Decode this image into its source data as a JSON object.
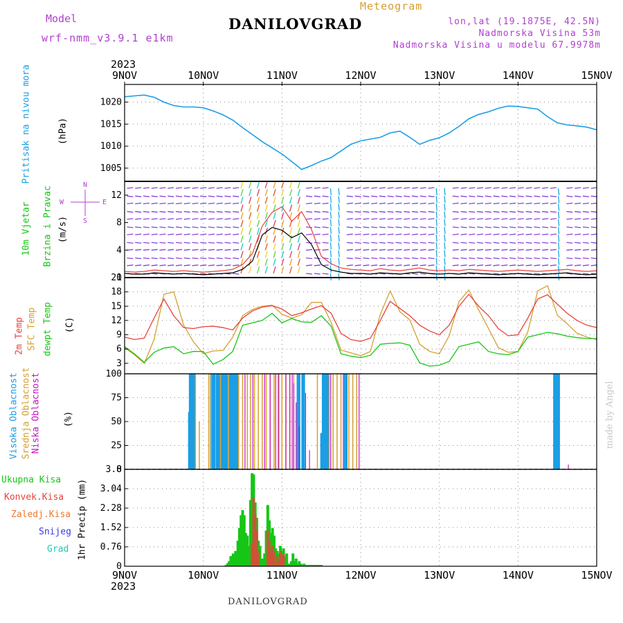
{
  "header": {
    "model_label": "Model",
    "model_name": "wrf-nmm_v3.9.1 e1km",
    "meteogram": "Meteogram",
    "station": "DANILOVGRAD",
    "lonlat": "lon,lat (19.1875E, 42.5N)",
    "elevation": "Nadmorska Visina 53m",
    "model_elevation": "Nadmorska Visina u modelu 67.9978m",
    "year_top": "2023",
    "year_bottom": "2023",
    "footer_station": "DANILOVGRAD",
    "watermark": "made by Angel"
  },
  "colors": {
    "pressure": "#1a9ee6",
    "temp2m": "#e8413c",
    "sfc": "#d4a030",
    "dewpt": "#16c616",
    "high_cloud": "#1a9ee6",
    "mid_cloud": "#d4a030",
    "low_cloud": "#c414c4",
    "total_precip": "#16c616",
    "conv_precip": "#e8413c",
    "grid_precip": "#e87a30",
    "snow": "#3a3ae8",
    "hail": "#20c8b0",
    "wind_mean": "#000000",
    "gust": "#e8413c",
    "purple_text": "#b040d0"
  },
  "chart_data": [
    {
      "type": "line",
      "panel": "pressure",
      "ylabel_left": "Pritisak na nivou mora",
      "ylabel_unit": "(hPa)",
      "ylim": [
        1002,
        1024
      ],
      "yticks": [
        1005,
        1010,
        1015,
        1020
      ],
      "xticks": [
        "9NOV",
        "10NOV",
        "11NOV",
        "12NOV",
        "13NOV",
        "14NOV",
        "15NOV"
      ],
      "x_days": [
        0,
        0.125,
        0.25,
        0.375,
        0.5,
        0.625,
        0.75,
        0.875,
        1,
        1.125,
        1.25,
        1.375,
        1.5,
        1.625,
        1.75,
        1.875,
        2,
        2.125,
        2.25,
        2.375,
        2.5,
        2.625,
        2.75,
        2.875,
        3,
        3.125,
        3.25,
        3.375,
        3.5,
        3.625,
        3.75,
        3.875,
        4,
        4.125,
        4.25,
        4.375,
        4.5,
        4.625,
        4.75,
        4.875,
        5,
        5.125,
        5.25,
        5.375,
        5.5,
        5.625,
        5.75,
        5.875,
        6
      ],
      "series": [
        {
          "values": [
            1021.2,
            1021.4,
            1021.6,
            1021.1,
            1020.0,
            1019.2,
            1018.9,
            1018.9,
            1018.7,
            1018.0,
            1017.1,
            1015.9,
            1014.2,
            1012.6,
            1011.0,
            1009.6,
            1008.2,
            1006.5,
            1004.7,
            1005.6,
            1006.6,
            1007.4,
            1008.9,
            1010.4,
            1011.2,
            1011.6,
            1012.0,
            1013.0,
            1013.4,
            1012.0,
            1010.4,
            1011.3,
            1011.9,
            1013.0,
            1014.5,
            1016.2,
            1017.2,
            1017.8,
            1018.6,
            1019.1,
            1019.0,
            1018.7,
            1018.4,
            1016.7,
            1015.3,
            1014.8,
            1014.6,
            1014.3,
            1013.7
          ]
        }
      ]
    },
    {
      "type": "line",
      "panel": "wind",
      "ylabel_left": [
        "10m Vjetar",
        "Brzina i Pravac"
      ],
      "ylabel_unit": "(m/s)",
      "compass": {
        "north": "N",
        "west": "W",
        "east": "E",
        "south": "S"
      },
      "ylim": [
        0,
        14
      ],
      "yticks": [
        0,
        4,
        8,
        12
      ],
      "x_days": [
        0,
        0.125,
        0.25,
        0.375,
        0.5,
        0.625,
        0.75,
        0.875,
        1,
        1.125,
        1.25,
        1.375,
        1.5,
        1.625,
        1.75,
        1.875,
        2,
        2.125,
        2.25,
        2.375,
        2.5,
        2.625,
        2.75,
        2.875,
        3,
        3.125,
        3.25,
        3.375,
        3.5,
        3.625,
        3.75,
        3.875,
        4,
        4.125,
        4.25,
        4.375,
        4.5,
        4.625,
        4.75,
        4.875,
        5,
        5.125,
        5.25,
        5.375,
        5.5,
        5.625,
        5.75,
        5.875,
        6
      ],
      "series": [
        {
          "values": [
            0.6,
            0.5,
            0.5,
            0.7,
            0.6,
            0.5,
            0.6,
            0.5,
            0.4,
            0.5,
            0.6,
            0.7,
            1.2,
            2.4,
            6.2,
            7.3,
            6.9,
            5.8,
            6.5,
            4.8,
            1.9,
            1.1,
            0.8,
            0.6,
            0.6,
            0.5,
            0.7,
            0.6,
            0.5,
            0.7,
            0.8,
            0.6,
            0.5,
            0.6,
            0.5,
            0.7,
            0.6,
            0.5,
            0.4,
            0.5,
            0.6,
            0.5,
            0.4,
            0.5,
            0.6,
            0.7,
            0.5,
            0.4,
            0.5
          ]
        },
        {
          "values": [
            0.9,
            0.8,
            0.9,
            1.1,
            1.0,
            0.9,
            1.0,
            0.9,
            0.8,
            0.9,
            1.0,
            1.2,
            1.9,
            3.5,
            7.5,
            9.5,
            10.3,
            8.2,
            9.6,
            7.0,
            3.1,
            2.0,
            1.4,
            1.2,
            1.1,
            1.0,
            1.3,
            1.1,
            1.0,
            1.2,
            1.4,
            1.1,
            1.0,
            1.1,
            1.0,
            1.2,
            1.1,
            1.0,
            0.9,
            1.0,
            1.1,
            1.0,
            0.9,
            1.0,
            1.1,
            1.2,
            1.0,
            0.9,
            1.0
          ]
        }
      ]
    },
    {
      "type": "line",
      "panel": "temperature",
      "ylabel_left": [
        "2m Temp",
        "SFC Temp",
        "dewpt Temp"
      ],
      "ylabel_unit": "(C)",
      "ylim": [
        0.8,
        21
      ],
      "yticks": [
        3,
        6,
        9,
        12,
        15,
        18,
        21
      ],
      "x_days": [
        0,
        0.125,
        0.25,
        0.375,
        0.5,
        0.625,
        0.75,
        0.875,
        1,
        1.125,
        1.25,
        1.375,
        1.5,
        1.625,
        1.75,
        1.875,
        2,
        2.125,
        2.25,
        2.375,
        2.5,
        2.625,
        2.75,
        2.875,
        3,
        3.125,
        3.25,
        3.375,
        3.5,
        3.625,
        3.75,
        3.875,
        4,
        4.125,
        4.25,
        4.375,
        4.5,
        4.625,
        4.75,
        4.875,
        5,
        5.125,
        5.25,
        5.375,
        5.5,
        5.625,
        5.75,
        5.875,
        6
      ],
      "series": [
        {
          "name": "2m Temp",
          "values": [
            8.5,
            8.0,
            8.3,
            12.5,
            16.5,
            13.0,
            10.5,
            10.3,
            10.7,
            10.8,
            10.5,
            10.0,
            12.5,
            14.0,
            14.8,
            15.1,
            14.4,
            13.0,
            13.6,
            14.4,
            15.1,
            13.5,
            9.3,
            8.0,
            7.6,
            8.3,
            12.0,
            16.0,
            14.5,
            13.0,
            11.0,
            9.8,
            9.0,
            11.0,
            15.0,
            17.5,
            15.0,
            13.0,
            10.3,
            8.8,
            9.0,
            12.5,
            16.5,
            17.4,
            15.4,
            13.5,
            12.0,
            11.0,
            10.5
          ]
        },
        {
          "name": "SFC Temp",
          "values": [
            6.3,
            4.8,
            3.0,
            8.0,
            17.5,
            18.0,
            11.0,
            7.5,
            5.0,
            5.6,
            5.7,
            8.5,
            13.0,
            14.3,
            15.0,
            15.2,
            13.3,
            12.5,
            13.2,
            15.8,
            15.8,
            11.6,
            5.8,
            5.2,
            4.6,
            5.5,
            13.3,
            18.2,
            13.8,
            12.1,
            7.0,
            5.5,
            5.0,
            8.8,
            16.0,
            18.4,
            14.2,
            10.3,
            6.3,
            5.3,
            5.5,
            9.6,
            18.2,
            19.3,
            13.1,
            11.3,
            9.3,
            8.5,
            8.0
          ]
        },
        {
          "name": "dewpt Temp",
          "values": [
            6.5,
            5.0,
            3.2,
            5.3,
            6.2,
            6.5,
            5.0,
            5.5,
            5.5,
            2.8,
            3.8,
            5.5,
            11.0,
            11.5,
            12.0,
            13.5,
            11.5,
            12.4,
            11.7,
            11.6,
            13.0,
            10.8,
            5.0,
            4.5,
            4.2,
            4.7,
            7.0,
            7.2,
            7.3,
            6.8,
            3.1,
            2.4,
            2.6,
            3.4,
            6.5,
            7.0,
            7.5,
            5.5,
            5.0,
            4.8,
            5.5,
            8.5,
            9.0,
            9.5,
            9.2,
            8.7,
            8.4,
            8.2,
            8.2
          ]
        }
      ]
    },
    {
      "type": "bar",
      "panel": "cloud",
      "ylabel_left": [
        "Visoka Oblacnost",
        "Srednja Oblacnost",
        "Niska Oblacnost"
      ],
      "ylabel_unit": "(%)",
      "ylim": [
        0,
        100
      ],
      "yticks": [
        0,
        25,
        50,
        75,
        100
      ],
      "series": [
        {
          "name": "Visoka Oblacnost",
          "x": [
            0.82,
            0.83,
            0.84,
            0.85,
            0.86,
            0.87,
            0.88,
            0.89,
            1.1,
            1.11,
            1.12,
            1.13,
            1.14,
            1.17,
            1.18,
            1.19,
            1.2,
            1.23,
            1.24,
            1.25,
            1.26,
            1.27,
            1.28,
            1.29,
            1.3,
            1.33,
            1.34,
            1.35,
            1.36,
            1.37,
            1.38,
            1.4,
            1.41,
            1.42,
            1.43,
            2.2,
            2.21,
            2.22,
            2.26,
            2.27,
            2.28,
            2.5,
            2.51,
            2.52,
            2.54,
            2.55,
            2.56,
            2.57,
            2.58,
            2.59,
            2.8,
            2.81,
            2.82,
            5.46,
            5.47,
            5.48,
            5.5,
            5.51,
            5.52
          ],
          "values": [
            60,
            100,
            100,
            100,
            100,
            100,
            100,
            100,
            100,
            100,
            100,
            100,
            100,
            100,
            100,
            100,
            100,
            100,
            100,
            100,
            100,
            100,
            100,
            100,
            100,
            100,
            100,
            100,
            100,
            100,
            100,
            100,
            100,
            100,
            100,
            100,
            100,
            100,
            100,
            100,
            100,
            38,
            38,
            100,
            100,
            100,
            100,
            100,
            100,
            100,
            100,
            100,
            100,
            100,
            100,
            100,
            100,
            100,
            100
          ]
        },
        {
          "name": "Srednja Oblacnost",
          "x": [
            0.9,
            0.95,
            1.07,
            1.1,
            1.22,
            1.32,
            1.45,
            1.5,
            1.56,
            1.6,
            1.65,
            1.7,
            1.75,
            1.8,
            1.85,
            1.9,
            1.95,
            2.0,
            2.05,
            2.1,
            2.15,
            2.45,
            2.6,
            2.65,
            2.7,
            2.75,
            2.85,
            2.9,
            2.95
          ],
          "values": [
            100,
            50,
            100,
            100,
            100,
            100,
            100,
            100,
            100,
            100,
            100,
            100,
            100,
            100,
            100,
            100,
            100,
            100,
            100,
            100,
            100,
            100,
            100,
            100,
            100,
            100,
            100,
            100,
            100
          ]
        },
        {
          "name": "Niska Oblacnost",
          "x": [
            1.53,
            1.63,
            1.78,
            1.85,
            1.92,
            1.96,
            2.05,
            2.1,
            2.13,
            2.15,
            2.18,
            2.22,
            2.3,
            2.35,
            2.62,
            2.78,
            2.98,
            5.64
          ],
          "values": [
            100,
            100,
            100,
            100,
            100,
            100,
            100,
            100,
            100,
            90,
            70,
            45,
            80,
            20,
            100,
            100,
            100,
            5
          ]
        }
      ]
    },
    {
      "type": "bar",
      "panel": "precip",
      "ylabel_left": [
        "Ukupna Kisa",
        "Konvek.Kisa",
        "Zaledj.Kisa",
        "Snijeg",
        "Grad"
      ],
      "ylabel_unit": "1hr Precip (mm)",
      "ylim": [
        0,
        3.8
      ],
      "yticks": [
        0,
        0.76,
        1.52,
        2.28,
        3.04,
        3.8
      ],
      "xticks": [
        "9NOV",
        "10NOV",
        "11NOV",
        "12NOV",
        "13NOV",
        "14NOV",
        "15NOV"
      ],
      "series": [
        {
          "name": "Ukupna Kisa",
          "x": [
            1.29,
            1.31,
            1.33,
            1.35,
            1.38,
            1.41,
            1.44,
            1.46,
            1.48,
            1.5,
            1.52,
            1.54,
            1.56,
            1.58,
            1.6,
            1.62,
            1.64,
            1.66,
            1.68,
            1.7,
            1.72,
            1.74,
            1.76,
            1.78,
            1.8,
            1.82,
            1.84,
            1.86,
            1.88,
            1.9,
            1.92,
            1.94,
            1.96,
            1.98,
            2.0,
            2.02,
            2.04,
            2.06,
            2.08,
            2.1,
            2.12,
            2.14,
            2.16,
            2.18,
            2.2,
            2.22,
            2.24,
            2.26,
            2.28,
            2.3,
            2.32,
            2.34,
            2.36,
            2.38,
            2.4,
            2.42,
            2.44,
            2.46,
            2.48,
            2.5
          ],
          "values": [
            0.05,
            0.12,
            0.2,
            0.4,
            0.5,
            0.6,
            1.0,
            1.5,
            2.0,
            2.2,
            2.0,
            1.3,
            1.2,
            0.8,
            2.6,
            3.65,
            3.6,
            2.5,
            1.9,
            1.0,
            0.8,
            0.3,
            0.3,
            0.5,
            1.4,
            2.4,
            1.8,
            1.3,
            1.5,
            1.2,
            0.7,
            0.6,
            0.5,
            0.8,
            0.6,
            0.7,
            0.4,
            0.5,
            0.1,
            0.1,
            0.2,
            0.5,
            0.2,
            0.3,
            0.1,
            0.2,
            0.1,
            0.05,
            0.1,
            0.05,
            0.05,
            0.05,
            0.05,
            0.05,
            0.05,
            0.05,
            0.05,
            0.05,
            0.05,
            0.05
          ]
        },
        {
          "name": "Konvek.Kisa",
          "x": [
            1.62,
            1.64,
            1.66,
            1.68,
            1.7,
            1.82,
            1.84,
            1.86,
            1.88,
            1.9,
            1.94,
            1.96,
            1.98,
            2.0,
            2.02
          ],
          "values": [
            0.9,
            2.7,
            2.0,
            1.4,
            0.6,
            1.4,
            1.0,
            0.6,
            0.8,
            0.6,
            0.4,
            0.2,
            0.6,
            0.4,
            0.5
          ]
        }
      ]
    }
  ]
}
